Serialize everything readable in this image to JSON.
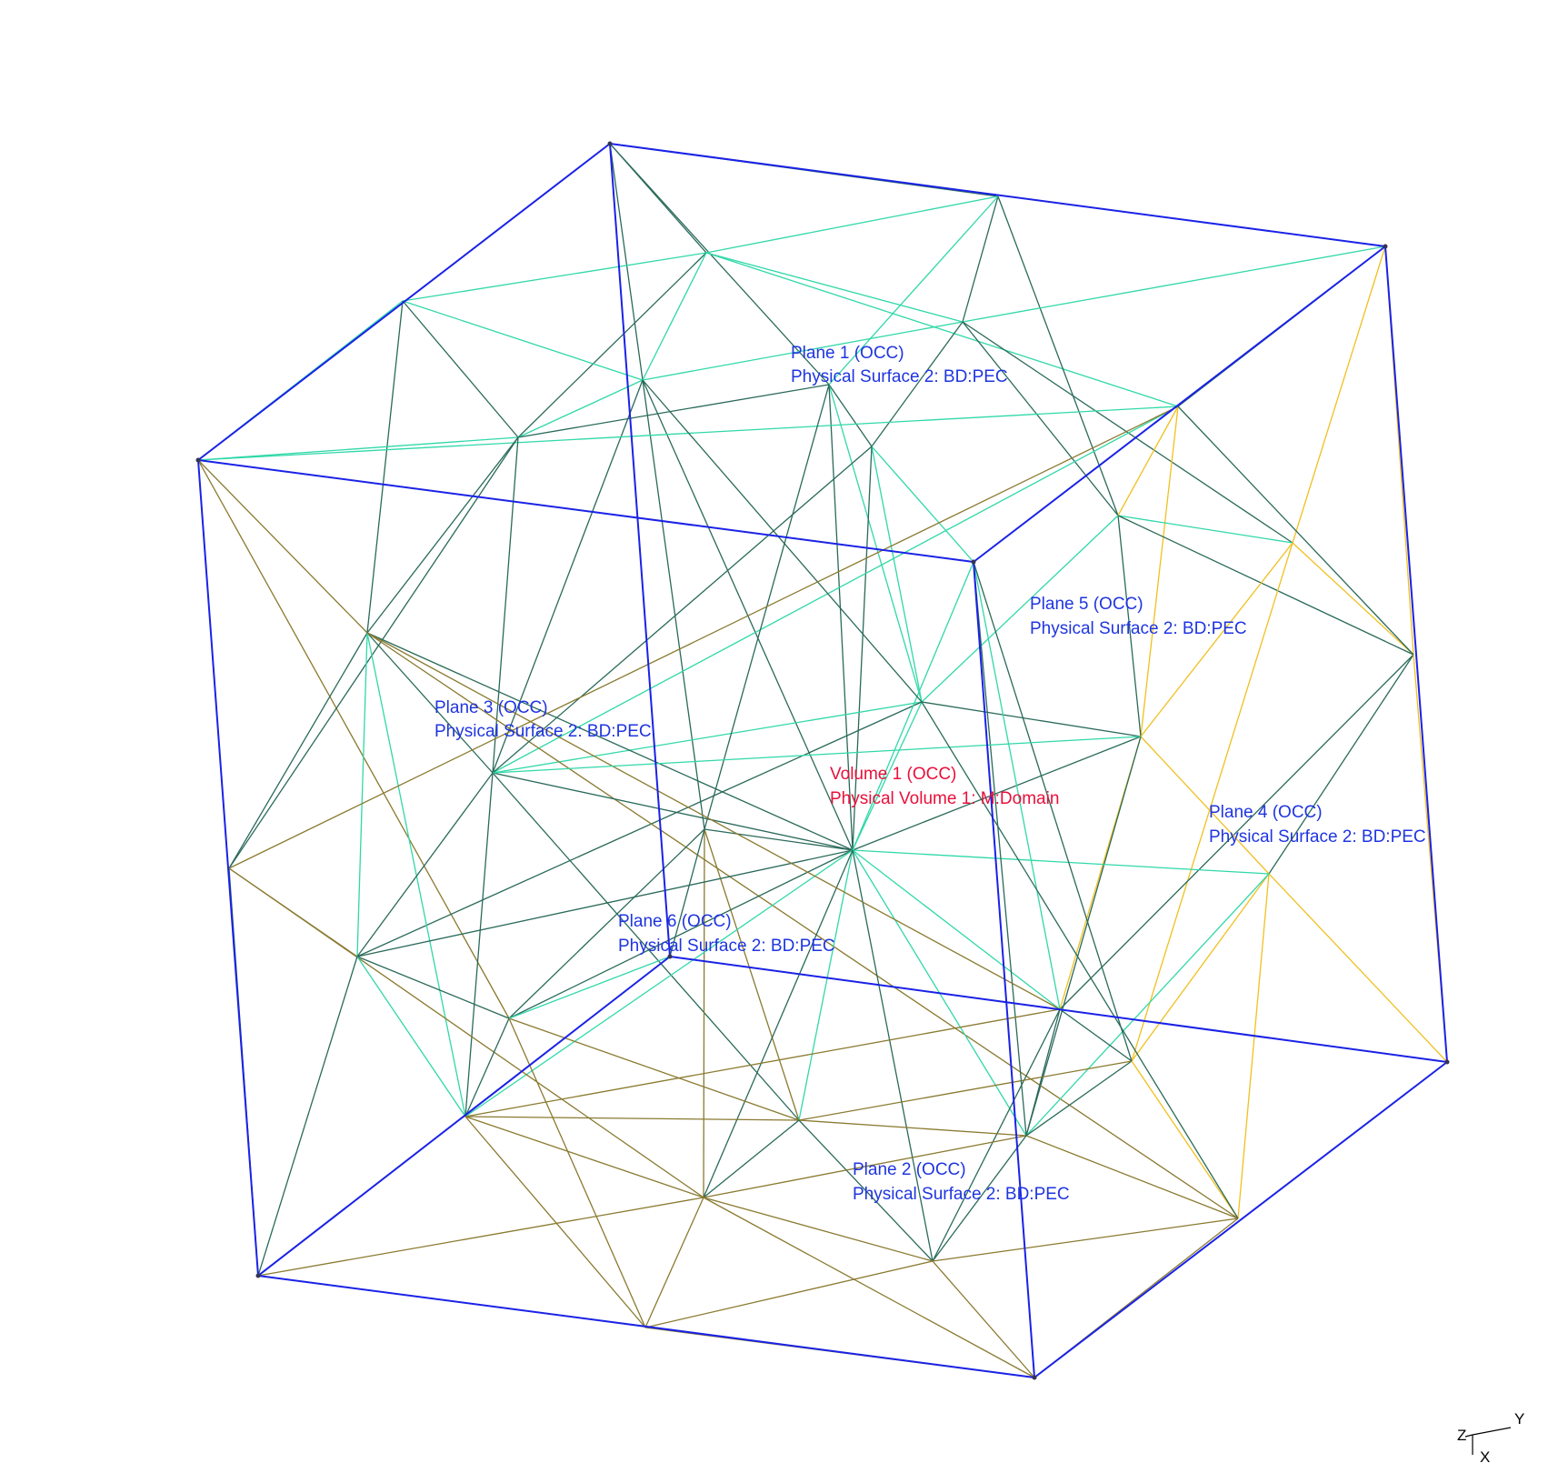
{
  "view": {
    "colors": {
      "boundary": "#1a22e6",
      "mesh_teal": "#2a6a5a",
      "mesh_cyan": "#30d8a8",
      "mesh_olive": "#8a7a30",
      "mesh_yellow": "#f0c020",
      "label_blue": "#1f35e0",
      "label_red": "#e8103a"
    },
    "labels": {
      "plane1": {
        "name": "Plane 1 (OCC)",
        "physical": "Physical Surface 2: BD:PEC"
      },
      "plane5": {
        "name": "Plane 5 (OCC)",
        "physical": "Physical Surface 2: BD:PEC"
      },
      "plane3": {
        "name": "Plane 3 (OCC)",
        "physical": "Physical Surface 2: BD:PEC"
      },
      "volume1": {
        "name": "Volume 1 (OCC)",
        "physical": "Physical Volume 1: M:Domain"
      },
      "plane4": {
        "name": "Plane 4 (OCC)",
        "physical": "Physical Surface 2: BD:PEC"
      },
      "plane6": {
        "name": "Plane 6 (OCC)",
        "physical": "Physical Surface 2: BD:PEC"
      },
      "plane2": {
        "name": "Plane 2 (OCC)",
        "physical": "Physical Surface 2: BD:PEC"
      }
    },
    "axes": {
      "z": "Z",
      "y": "Y",
      "x": "X"
    }
  }
}
